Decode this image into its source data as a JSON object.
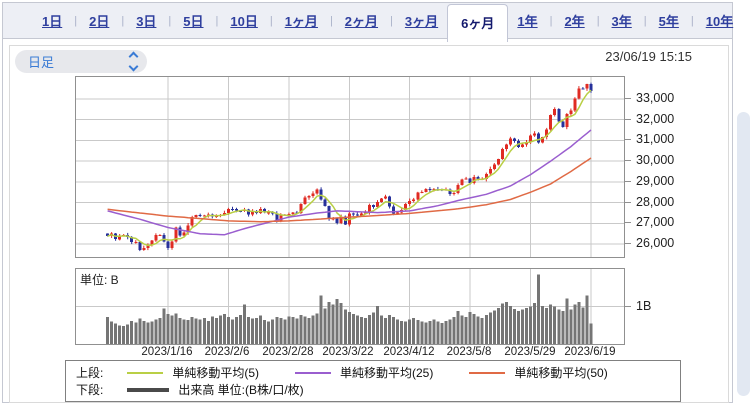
{
  "tabs": {
    "items": [
      {
        "label": "1日",
        "selected": false
      },
      {
        "label": "2日",
        "selected": false
      },
      {
        "label": "3日",
        "selected": false
      },
      {
        "label": "5日",
        "selected": false
      },
      {
        "label": "10日",
        "selected": false
      },
      {
        "label": "1ヶ月",
        "selected": false
      },
      {
        "label": "2ヶ月",
        "selected": false
      },
      {
        "label": "3ヶ月",
        "selected": false
      },
      {
        "label": "6ヶ月",
        "selected": true
      },
      {
        "label": "1年",
        "selected": false
      },
      {
        "label": "2年",
        "selected": false
      },
      {
        "label": "3年",
        "selected": false
      },
      {
        "label": "5年",
        "selected": false
      },
      {
        "label": "10年",
        "selected": false
      }
    ]
  },
  "toolbar": {
    "interval_select": {
      "value": "日足"
    },
    "timestamp": "23/06/19 15:15"
  },
  "chart_data": {
    "type": "candlestick_with_volume",
    "x_axis": {
      "tick_labels": [
        "2023/1/16",
        "2023/2/6",
        "2023/2/28",
        "2023/3/22",
        "2023/4/12",
        "2023/5/8",
        "2023/5/29",
        "2023/6/19"
      ],
      "tick_indices": [
        15,
        30,
        45,
        60,
        75,
        90,
        105,
        120
      ],
      "first_date": "2022/12/21",
      "last_date": "2023/6/19"
    },
    "price_axis": {
      "tick_labels": [
        "33,000",
        "32,000",
        "31,000",
        "30,000",
        "29,000",
        "28,000",
        "27,000",
        "26,000"
      ],
      "tick_values": [
        33000,
        32000,
        31000,
        30000,
        29000,
        28000,
        27000,
        26000
      ],
      "range": [
        25380,
        34050
      ]
    },
    "volume_axis": {
      "unit_label": "単位: B",
      "tick_label": "1B",
      "tick_value": 1,
      "range": [
        0,
        2
      ]
    },
    "candles": {
      "count": 121,
      "closes": [
        26387,
        26507,
        26235,
        26406,
        26448,
        26340,
        26093,
        26095,
        25717,
        25821,
        25974,
        26176,
        26446,
        26449,
        26119,
        25822,
        26138,
        26791,
        26405,
        26554,
        26906,
        27299,
        27395,
        27362,
        27383,
        27433,
        27327,
        27346,
        27402,
        27509,
        27693,
        27685,
        27606,
        27584,
        27671,
        27427,
        27602,
        27501,
        27696,
        27513,
        27531,
        27473,
        27104,
        27420,
        27424,
        27446,
        27516,
        27499,
        27927,
        28238,
        28309,
        28444,
        28623,
        28144,
        27833,
        27222,
        27229,
        27011,
        27334,
        26946,
        27466,
        27420,
        27385,
        27477,
        27518,
        27884,
        27783,
        28041,
        28188,
        28287,
        27813,
        27472,
        27518,
        27633,
        27923,
        28082,
        28156,
        28493,
        28514,
        28658,
        28606,
        28657,
        28620,
        28593,
        28620,
        28416,
        28458,
        28856,
        29123,
        29158,
        28949,
        29243,
        29122,
        29127,
        29388,
        29626,
        29843,
        30094,
        30574,
        30808,
        31087,
        30958,
        30683,
        30801,
        30916,
        31233,
        31328,
        30887,
        31148,
        31524,
        32217,
        32506,
        31914,
        31641,
        32265,
        32434,
        33018,
        33502,
        33485,
        33706,
        33370
      ]
    },
    "volumes": [
      0.72,
      0.6,
      0.55,
      0.5,
      0.48,
      0.52,
      0.62,
      0.58,
      0.68,
      0.62,
      0.58,
      0.6,
      0.66,
      0.7,
      0.95,
      0.8,
      0.76,
      0.82,
      0.7,
      0.66,
      0.64,
      0.72,
      0.68,
      0.66,
      0.7,
      0.62,
      0.74,
      0.7,
      0.76,
      0.8,
      0.72,
      0.66,
      0.72,
      0.78,
      1.05,
      0.72,
      0.68,
      0.7,
      0.76,
      0.64,
      0.6,
      0.66,
      0.72,
      0.7,
      0.66,
      0.74,
      0.72,
      0.68,
      0.78,
      0.74,
      0.7,
      0.76,
      0.82,
      1.3,
      0.95,
      1.12,
      1.05,
      1.2,
      1.1,
      0.92,
      0.85,
      0.8,
      0.76,
      0.72,
      0.7,
      0.78,
      0.84,
      1.02,
      0.76,
      0.7,
      0.78,
      0.72,
      0.66,
      0.62,
      0.6,
      0.66,
      0.7,
      0.64,
      0.6,
      0.58,
      0.62,
      0.66,
      0.6,
      0.56,
      0.62,
      0.66,
      0.72,
      0.88,
      0.76,
      0.72,
      0.86,
      0.8,
      0.74,
      0.7,
      0.78,
      0.84,
      0.9,
      0.96,
      1.08,
      1.12,
      1.02,
      0.94,
      0.88,
      0.92,
      0.96,
      1.0,
      1.1,
      1.85,
      1.02,
      0.96,
      1.06,
      1.0,
      0.92,
      0.88,
      1.22,
      0.92,
      1.06,
      1.12,
      0.98,
      1.3,
      0.55
    ],
    "series": [
      {
        "name": "単純移動平均(5)",
        "window": 5,
        "color": "#b9cf45",
        "derive": "ma_from_closes"
      },
      {
        "name": "単純移動平均(25)",
        "window": 25,
        "color": "#9a5ecf",
        "points": [
          [
            0,
            27600
          ],
          [
            8,
            27200
          ],
          [
            15,
            26800
          ],
          [
            23,
            26500
          ],
          [
            29,
            26450
          ],
          [
            34,
            26750
          ],
          [
            38,
            26950
          ],
          [
            45,
            27300
          ],
          [
            52,
            27500
          ],
          [
            57,
            27600
          ],
          [
            60,
            27580
          ],
          [
            67,
            27520
          ],
          [
            75,
            27600
          ],
          [
            82,
            27850
          ],
          [
            87,
            28100
          ],
          [
            94,
            28400
          ],
          [
            100,
            28800
          ],
          [
            105,
            29350
          ],
          [
            110,
            30000
          ],
          [
            115,
            30700
          ],
          [
            120,
            31500
          ]
        ]
      },
      {
        "name": "単純移動平均(50)",
        "window": 50,
        "color": "#e06a45",
        "points": [
          [
            0,
            27680
          ],
          [
            8,
            27500
          ],
          [
            15,
            27350
          ],
          [
            23,
            27230
          ],
          [
            30,
            27120
          ],
          [
            38,
            27080
          ],
          [
            45,
            27120
          ],
          [
            52,
            27200
          ],
          [
            60,
            27300
          ],
          [
            67,
            27380
          ],
          [
            75,
            27480
          ],
          [
            87,
            27700
          ],
          [
            94,
            27900
          ],
          [
            100,
            28150
          ],
          [
            105,
            28500
          ],
          [
            110,
            28900
          ],
          [
            115,
            29500
          ],
          [
            120,
            30150
          ]
        ]
      }
    ],
    "colors": {
      "up": "#e02b23",
      "down": "#27319b",
      "volume": "#757575",
      "grid": "#c9c9c9",
      "border": "#909090"
    }
  },
  "legend": {
    "upper_label": "上段:",
    "lower_label": "下段:",
    "volume_item": {
      "label": "出来高 単位:(B株/口/枚)",
      "color": "#4a4a4a"
    }
  }
}
